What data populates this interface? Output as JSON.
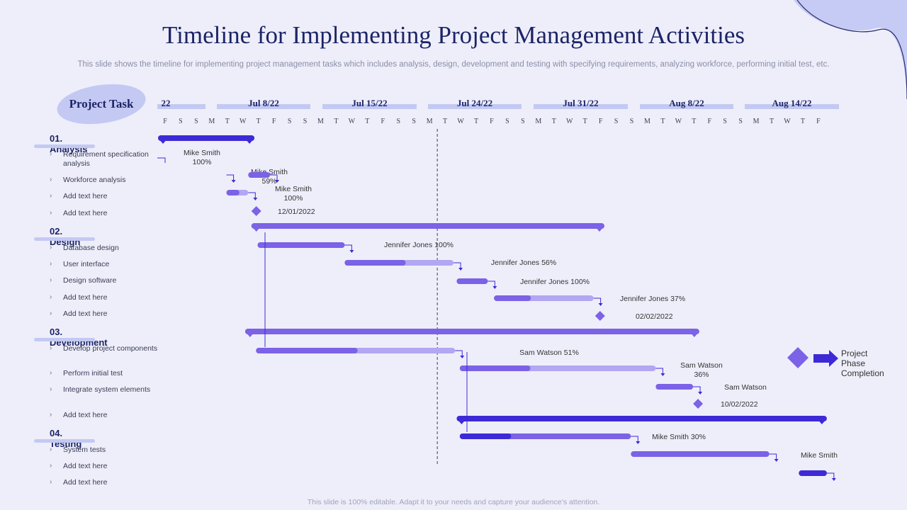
{
  "slide": {
    "title": "Timeline for Implementing Project Management Activities",
    "subtitle": "This slide shows the timeline for implementing project management tasks which includes analysis, design, development and testing with specifying requirements, analyzing workforce, performing initial test, etc.",
    "footer": "This slide is 100% editable. Adapt it to your needs and capture your audience’s attention.",
    "project_task_label": "Project Task",
    "legend": [
      "Project",
      "Phase",
      "Completion"
    ]
  },
  "colors": {
    "navy": "#1c2466",
    "dark_bar": "#3d2ad6",
    "mid_bar": "#7b62e6",
    "light_bar": "#b3a6f2",
    "header_band": "#c4c9f3",
    "background": "#eeeefa"
  },
  "phases": [
    {
      "number": "01.",
      "name": "Analysis",
      "tasks": [
        "Requirement specification analysis",
        "Workforce analysis",
        "Add text here",
        "Add text here"
      ]
    },
    {
      "number": "02.",
      "name": "Design",
      "tasks": [
        "Database design",
        "User interface",
        "Design software",
        "Add text here",
        "Add text here"
      ]
    },
    {
      "number": "03.",
      "name": "Development",
      "tasks": [
        "Develop project components",
        "Perform initial test",
        "Integrate system elements",
        "Add text here"
      ]
    },
    {
      "number": "04.",
      "name": "Testing",
      "tasks": [
        "System tests",
        "Add text here",
        "Add text here"
      ]
    }
  ],
  "chart_data": {
    "type": "gantt",
    "week_labels": [
      "22",
      "Jul 8/22",
      "Jul 15/22",
      "Jul 24/22",
      "Jul 31/22",
      "Aug 8/22",
      "Aug 14/22"
    ],
    "day_labels": [
      "F",
      "S",
      "S",
      "M",
      "T",
      "W",
      "T",
      "F",
      "S",
      "S",
      "M",
      "T",
      "W",
      "T",
      "F",
      "S",
      "S",
      "M",
      "T",
      "W",
      "T",
      "F",
      "S",
      "S",
      "M",
      "T",
      "W",
      "T",
      "F",
      "S",
      "S",
      "M",
      "T",
      "W",
      "T",
      "F",
      "S",
      "S",
      "M",
      "T",
      "W",
      "T",
      "F"
    ],
    "phase_bars": [
      {
        "phase": "Analysis",
        "start": 0,
        "end": 6.2
      },
      {
        "phase": "Design",
        "start": 6.0,
        "end": 28.7
      },
      {
        "phase": "Development",
        "start": 5.6,
        "end": 34.8
      },
      {
        "phase": "Testing",
        "start": 19.2,
        "end": 43
      }
    ],
    "tasks": [
      {
        "phase": "Analysis",
        "start": 0,
        "end": 4.4,
        "progress": 1.0,
        "label": "Mike Smith\n100%"
      },
      {
        "phase": "Analysis",
        "start": 4.4,
        "end": 5.8,
        "progress": 0.59,
        "label": "Mike Smith\n59%"
      },
      {
        "phase": "Analysis",
        "start": 5.8,
        "end": 7.2,
        "progress": 1.0,
        "label": "Mike Smith\n100%"
      },
      {
        "phase": "Design",
        "start": 6.4,
        "end": 12.0,
        "progress": 1.0,
        "label": "Jennifer Jones 100%"
      },
      {
        "phase": "Design",
        "start": 12.0,
        "end": 19.0,
        "progress": 0.56,
        "label": "Jennifer Jones 56%"
      },
      {
        "phase": "Design",
        "start": 19.2,
        "end": 21.2,
        "progress": 1.0,
        "label": "Jennifer Jones 100%"
      },
      {
        "phase": "Design",
        "start": 21.6,
        "end": 28.0,
        "progress": 0.37,
        "label": "Jennifer Jones 37%"
      },
      {
        "phase": "Development",
        "start": 6.3,
        "end": 19.1,
        "progress": 0.51,
        "label": "Sam Watson 51%"
      },
      {
        "phase": "Development",
        "start": 19.4,
        "end": 32.0,
        "progress": 0.36,
        "label": "Sam Watson\n36%"
      },
      {
        "phase": "Development",
        "start": 32.0,
        "end": 34.4,
        "progress": 1.0,
        "label": "Sam Watson"
      },
      {
        "phase": "Testing",
        "start": 19.4,
        "end": 30.4,
        "progress": 0.3,
        "label": "Mike Smith  30%"
      },
      {
        "phase": "Testing",
        "start": 30.4,
        "end": 39.3,
        "progress": 0.0,
        "label": ""
      },
      {
        "phase": "Testing",
        "start": 41.2,
        "end": 43.0,
        "progress": 1.0,
        "label": "Mike Smith"
      }
    ],
    "milestones": [
      {
        "label": "12/01/2022",
        "day": 6.0
      },
      {
        "label": "02/02/2022",
        "day": 28.1
      },
      {
        "label": "10/02/2022",
        "day": 34.4
      }
    ],
    "today_line_day": 17.5
  }
}
